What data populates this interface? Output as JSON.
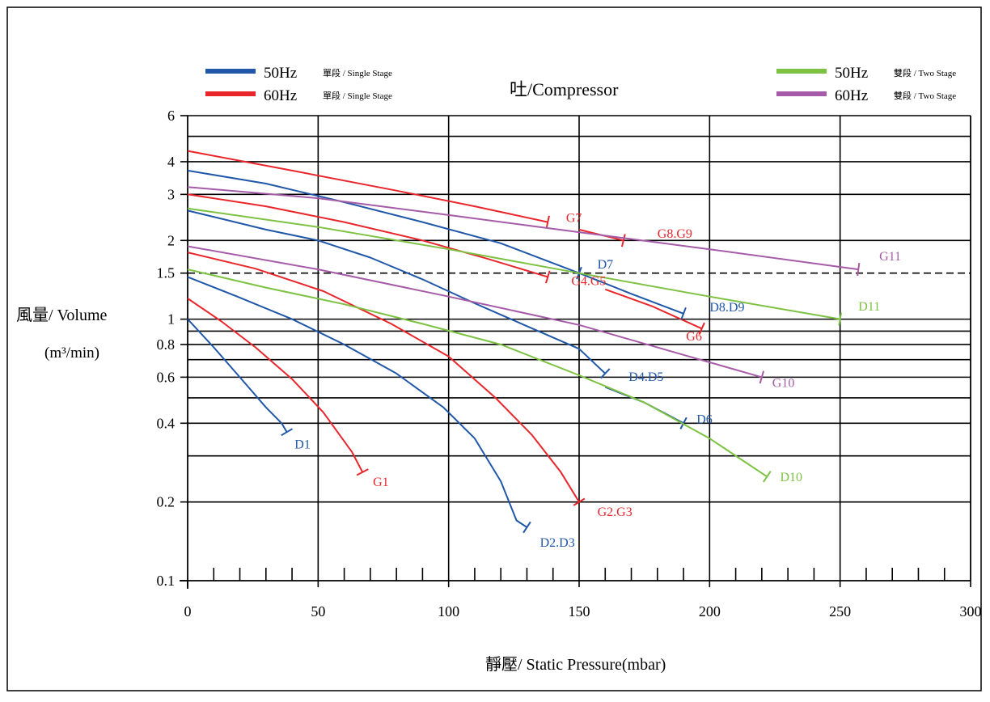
{
  "chart_data": {
    "type": "line",
    "title": "吐/Compressor",
    "xlabel": "靜壓/ Static Pressure(mbar)",
    "ylabel_line1": "風量/ Volume",
    "ylabel_line2": "(m³/min)",
    "xlim": [
      0,
      300
    ],
    "ylim": [
      0.1,
      6
    ],
    "y_scale": "log",
    "grid": true,
    "legend_placement": "top",
    "x_ticks": [
      "0",
      "50",
      "100",
      "150",
      "200",
      "250",
      "300"
    ],
    "y_ticks": [
      "0.1",
      "0.2",
      "0.4",
      "0.6",
      "0.8",
      "1",
      "1.5",
      "2",
      "3",
      "4",
      "6"
    ],
    "legend": [
      {
        "freq": "50Hz",
        "stage": "單段 / Single Stage",
        "color": "#2057a8"
      },
      {
        "freq": "60Hz",
        "stage": "單段 / Single Stage",
        "color": "#e8262b"
      },
      {
        "freq": "50Hz",
        "stage": "雙段 / Two Stage",
        "color": "#7dc242"
      },
      {
        "freq": "60Hz",
        "stage": "雙段 / Two Stage",
        "color": "#a65ba8"
      }
    ],
    "series": [
      {
        "name": "D1",
        "color": "#2057a8",
        "x": [
          0,
          10,
          20,
          30,
          36,
          38
        ],
        "y": [
          1.0,
          0.78,
          0.6,
          0.46,
          0.4,
          0.37
        ]
      },
      {
        "name": "G1",
        "color": "#e8262b",
        "x": [
          0,
          13,
          26,
          40,
          52,
          63,
          67
        ],
        "y": [
          1.2,
          0.98,
          0.78,
          0.59,
          0.44,
          0.31,
          0.26
        ]
      },
      {
        "name": "D2.D3",
        "color": "#2057a8",
        "x": [
          0,
          19,
          40,
          60,
          80,
          98,
          110,
          120,
          126,
          130
        ],
        "y": [
          1.45,
          1.22,
          1.0,
          0.8,
          0.62,
          0.46,
          0.35,
          0.24,
          0.17,
          0.16
        ]
      },
      {
        "name": "G2.G3",
        "color": "#e8262b",
        "x": [
          0,
          26,
          52,
          78,
          100,
          118,
          132,
          143,
          150
        ],
        "y": [
          1.8,
          1.56,
          1.28,
          0.96,
          0.72,
          0.5,
          0.36,
          0.26,
          0.2
        ]
      },
      {
        "name": "D4.D5",
        "color": "#2057a8",
        "x": [
          0,
          13,
          30,
          50,
          70,
          90,
          110,
          130,
          150,
          160
        ],
        "y": [
          2.6,
          2.42,
          2.2,
          2.0,
          1.72,
          1.42,
          1.15,
          0.94,
          0.77,
          0.62
        ]
      },
      {
        "name": "D6",
        "color": "#2057a8",
        "x": [
          160,
          175,
          190
        ],
        "y": [
          0.55,
          0.48,
          0.4
        ]
      },
      {
        "name": "G4.G5",
        "color": "#e8262b",
        "x": [
          0,
          30,
          60,
          90,
          115,
          138
        ],
        "y": [
          3.0,
          2.7,
          2.35,
          2.0,
          1.7,
          1.45
        ]
      },
      {
        "name": "G6",
        "color": "#e8262b",
        "x": [
          160,
          178,
          197
        ],
        "y": [
          1.3,
          1.12,
          0.92
        ]
      },
      {
        "name": "D7",
        "color": "#2057a8",
        "x": [
          0,
          30,
          60,
          90,
          120,
          150
        ],
        "y": [
          3.7,
          3.3,
          2.8,
          2.35,
          1.95,
          1.5
        ]
      },
      {
        "name": "D8.D9",
        "color": "#2057a8",
        "x": [
          150,
          170,
          190
        ],
        "y": [
          1.5,
          1.25,
          1.05
        ]
      },
      {
        "name": "G7",
        "color": "#e8262b",
        "x": [
          0,
          40,
          80,
          110,
          138
        ],
        "y": [
          4.4,
          3.7,
          3.1,
          2.7,
          2.35
        ]
      },
      {
        "name": "G8.G9",
        "color": "#e8262b",
        "x": [
          150,
          167
        ],
        "y": [
          2.2,
          2.0
        ]
      },
      {
        "name": "D10",
        "color": "#7dc242",
        "x": [
          0,
          30,
          60,
          90,
          120,
          150,
          175,
          200,
          222
        ],
        "y": [
          1.55,
          1.32,
          1.14,
          0.96,
          0.8,
          0.61,
          0.48,
          0.35,
          0.25
        ]
      },
      {
        "name": "D11",
        "color": "#7dc242",
        "x": [
          0,
          50,
          100,
          150,
          200,
          250
        ],
        "y": [
          2.65,
          2.25,
          1.85,
          1.5,
          1.22,
          1.0
        ]
      },
      {
        "name": "G10",
        "color": "#a65ba8",
        "x": [
          0,
          50,
          100,
          150,
          190,
          220
        ],
        "y": [
          1.9,
          1.55,
          1.22,
          0.95,
          0.73,
          0.6
        ]
      },
      {
        "name": "G11",
        "color": "#a65ba8",
        "x": [
          0,
          50,
          100,
          150,
          200,
          257
        ],
        "y": [
          3.2,
          2.9,
          2.5,
          2.15,
          1.85,
          1.55
        ]
      }
    ],
    "curve_labels": [
      {
        "text": "D1",
        "x": 41,
        "y": 0.32,
        "color": "#2057a8"
      },
      {
        "text": "G1",
        "x": 71,
        "y": 0.23,
        "color": "#e8262b"
      },
      {
        "text": "D2.D3",
        "x": 135,
        "y": 0.135,
        "color": "#2057a8"
      },
      {
        "text": "G2.G3",
        "x": 157,
        "y": 0.177,
        "color": "#e8262b"
      },
      {
        "text": "D4.D5",
        "x": 169,
        "y": 0.58,
        "color": "#2057a8"
      },
      {
        "text": "D6",
        "x": 195,
        "y": 0.4,
        "color": "#2057a8"
      },
      {
        "text": "G4.G5",
        "x": 147,
        "y": 1.35,
        "color": "#e8262b"
      },
      {
        "text": "G6",
        "x": 191,
        "y": 0.83,
        "color": "#e8262b"
      },
      {
        "text": "D7",
        "x": 157,
        "y": 1.56,
        "color": "#2057a8"
      },
      {
        "text": "D8.D9",
        "x": 200,
        "y": 1.07,
        "color": "#2057a8"
      },
      {
        "text": "G7",
        "x": 145,
        "y": 2.35,
        "color": "#e8262b"
      },
      {
        "text": "G8.G9",
        "x": 180,
        "y": 2.05,
        "color": "#e8262b"
      },
      {
        "text": "D10",
        "x": 227,
        "y": 0.24,
        "color": "#7dc242"
      },
      {
        "text": "D11",
        "x": 257,
        "y": 1.08,
        "color": "#7dc242"
      },
      {
        "text": "G10",
        "x": 224,
        "y": 0.55,
        "color": "#a65ba8"
      },
      {
        "text": "G11",
        "x": 265,
        "y": 1.68,
        "color": "#a65ba8"
      }
    ]
  }
}
